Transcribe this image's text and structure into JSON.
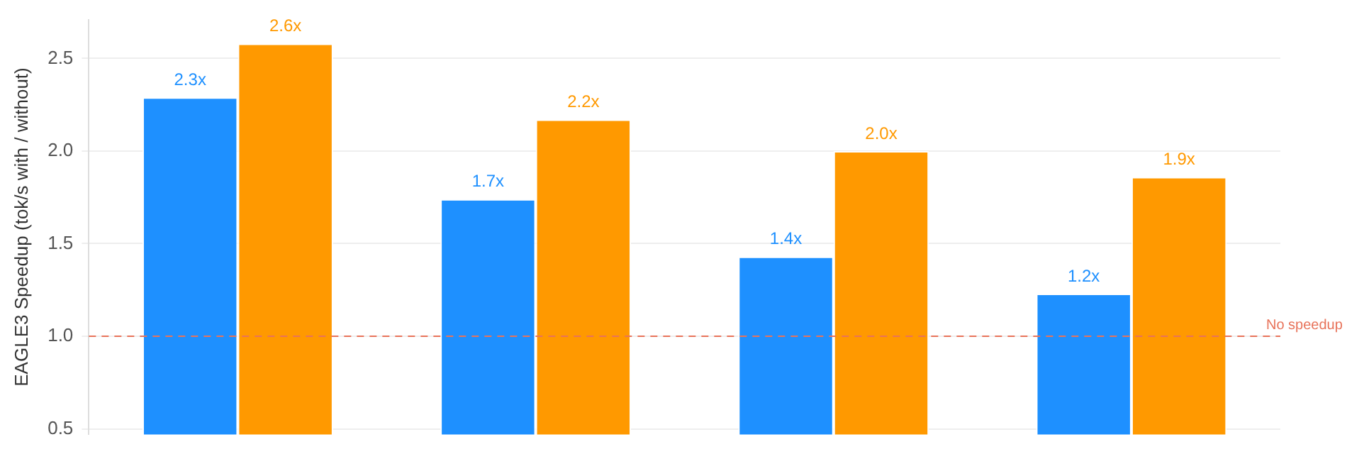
{
  "chart_data": {
    "type": "bar",
    "ylabel": "EAGLE3 Speedup (tok/s with / without)",
    "categories": [
      null,
      null,
      null,
      null
    ],
    "series": [
      {
        "color": "#1e90ff",
        "values": [
          2.29,
          1.74,
          1.43,
          1.23
        ],
        "value_labels": [
          "2.3x",
          "1.7x",
          "1.4x",
          "1.2x"
        ]
      },
      {
        "color": "#ff9900",
        "values": [
          2.58,
          2.17,
          2.0,
          1.86
        ],
        "value_labels": [
          "2.6x",
          "2.2x",
          "2.0x",
          "1.9x"
        ]
      }
    ],
    "ylim": [
      0.47,
      2.71
    ],
    "yticks": [
      0.5,
      {
        "value": 1,
        "label": "1.0"
      },
      1.5,
      {
        "value": 2,
        "label": "2.0"
      },
      2.5
    ],
    "grid": "y",
    "ref_lines": [
      {
        "axis": "y",
        "value": 1.0,
        "label": "No speedup",
        "color": "#e8735a",
        "line_style": "dashed"
      }
    ]
  }
}
